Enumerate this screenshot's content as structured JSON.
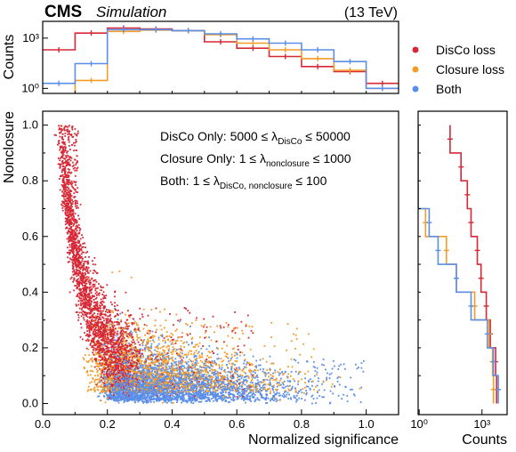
{
  "header": {
    "cms": "CMS",
    "simulation": "Simulation",
    "energy": "(13 TeV)"
  },
  "colors": {
    "disco": "#d62836",
    "closure": "#f39c27",
    "both": "#5b8ee8"
  },
  "legend": [
    "DisCo loss",
    "Closure loss",
    "Both"
  ],
  "annotations": [
    {
      "pre": "DisCo Only: 5000 ≤ λ",
      "sub": "DisCo",
      "post": " ≤ 50000"
    },
    {
      "pre": "Closure Only: 1 ≤ λ",
      "sub": "nonclosure",
      "post": " ≤ 1000"
    },
    {
      "pre": "Both: 1 ≤ λ",
      "sub": "DisCo, nonclosure",
      "post": " ≤ 100"
    }
  ],
  "chart_data": [
    {
      "type": "scatter",
      "panel": "main",
      "xlabel": "Normalized significance",
      "ylabel": "Nonclosure",
      "xlim": [
        0.0,
        1.1
      ],
      "ylim": [
        -0.04,
        1.05
      ],
      "xticks": [
        "0.0",
        "0.2",
        "0.4",
        "0.6",
        "0.8",
        "1.0"
      ],
      "yticks": [
        "0.0",
        "0.2",
        "0.4",
        "0.6",
        "0.8",
        "1.0"
      ],
      "series": [
        {
          "name": "DisCo loss",
          "x_range": [
            0.05,
            0.65
          ],
          "y_range": [
            0.0,
            1.0
          ],
          "core": "steep falling band from (0.08, 0.7) to (0.25, 0.15)"
        },
        {
          "name": "Closure loss",
          "x_range": [
            0.1,
            0.85
          ],
          "y_range": [
            0.0,
            0.5
          ],
          "core": "broad cloud centred near (0.45, 0.2)"
        },
        {
          "name": "Both",
          "x_range": [
            0.1,
            1.0
          ],
          "y_range": [
            0.0,
            0.45
          ],
          "core": "dense cloud centred near (0.4, 0.1)"
        }
      ]
    },
    {
      "type": "histogram",
      "panel": "top",
      "ylabel": "Counts",
      "yscale": "log",
      "yticks": [
        "10⁰",
        "10³"
      ],
      "bin_edges": [
        0.0,
        0.1,
        0.2,
        0.3,
        0.4,
        0.5,
        0.6,
        0.7,
        0.8,
        0.9,
        1.0,
        1.1
      ],
      "series": [
        {
          "name": "DisCo loss",
          "counts": [
            200,
            2000,
            4000,
            3500,
            2800,
            600,
            250,
            80,
            20,
            10,
            2
          ]
        },
        {
          "name": "Closure loss",
          "counts": [
            0,
            3,
            2500,
            3000,
            2800,
            1600,
            500,
            200,
            60,
            12,
            1
          ]
        },
        {
          "name": "Both",
          "counts": [
            2,
            30,
            3200,
            3200,
            2800,
            1800,
            900,
            500,
            200,
            40,
            1
          ]
        }
      ]
    },
    {
      "type": "histogram",
      "panel": "right",
      "orientation": "horizontal",
      "xlabel": "Counts",
      "xscale": "log",
      "xticks": [
        "10⁰",
        "10³"
      ],
      "bin_edges": [
        0.0,
        0.1,
        0.2,
        0.3,
        0.4,
        0.5,
        0.6,
        0.7,
        0.8,
        0.9,
        1.0
      ],
      "series": [
        {
          "name": "DisCo loss",
          "counts": [
            5000,
            4500,
            2500,
            1600,
            900,
            600,
            300,
            200,
            100,
            30
          ]
        },
        {
          "name": "Closure loss",
          "counts": [
            3500,
            3200,
            2200,
            450,
            60,
            20,
            2,
            0,
            0,
            0
          ]
        },
        {
          "name": "Both",
          "counts": [
            6000,
            3500,
            1800,
            300,
            60,
            8,
            3,
            0,
            0,
            0
          ]
        }
      ]
    }
  ]
}
